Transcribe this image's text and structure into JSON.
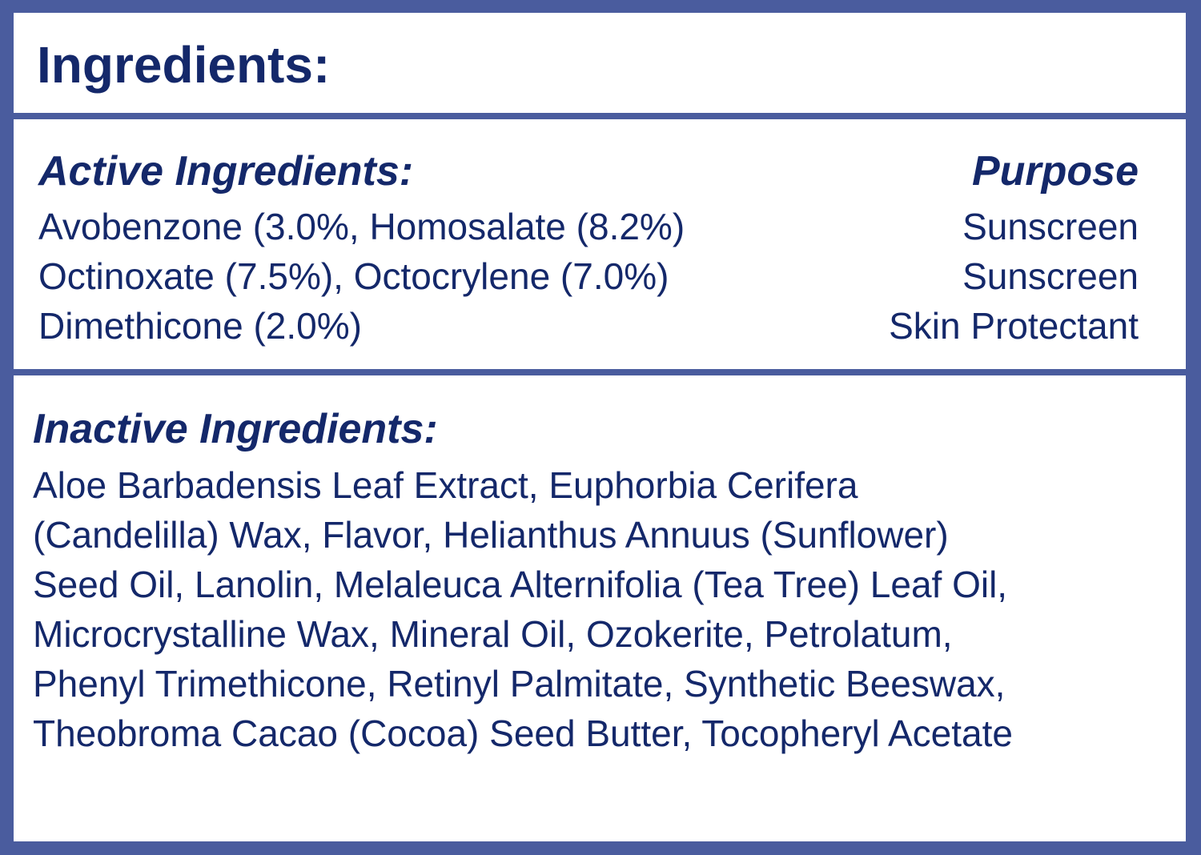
{
  "title": "Ingredients:",
  "active": {
    "heading": "Active Ingredients:",
    "purpose_heading": "Purpose",
    "rows": [
      {
        "ingredients": "Avobenzone (3.0%, Homosalate (8.2%)",
        "purpose": "Sunscreen"
      },
      {
        "ingredients": "Octinoxate (7.5%), Octocrylene (7.0%)",
        "purpose": "Sunscreen"
      },
      {
        "ingredients": "Dimethicone (2.0%)",
        "purpose": "Skin Protectant"
      }
    ]
  },
  "inactive": {
    "heading": "Inactive Ingredients:",
    "lines": [
      "Aloe Barbadensis Leaf Extract, Euphorbia Cerifera",
      "(Candelilla) Wax, Flavor, Helianthus Annuus (Sunflower)",
      "Seed Oil, Lanolin, Melaleuca Alternifolia (Tea Tree) Leaf Oil,",
      "Microcrystalline Wax, Mineral Oil, Ozokerite, Petrolatum,",
      "Phenyl Trimethicone, Retinyl Palmitate, Synthetic Beeswax,",
      "Theobroma Cacao (Cocoa) Seed Butter, Tocopheryl Acetate"
    ]
  },
  "colors": {
    "border": "#4a5c9e",
    "text": "#14286a"
  }
}
